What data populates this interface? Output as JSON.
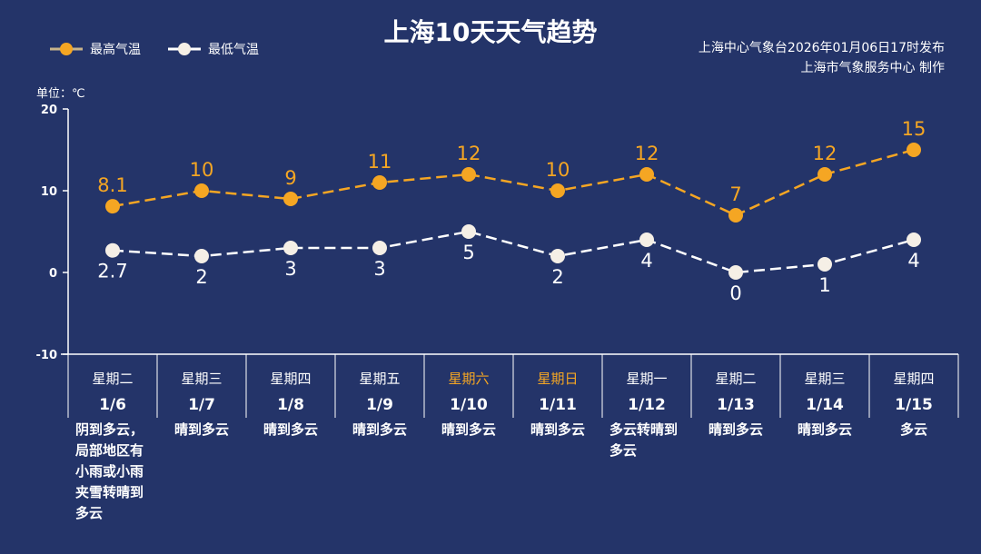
{
  "header": {
    "title": "上海10天天气趋势",
    "publisher": "上海中心气象台2026年01月06日17时发布",
    "maker": "上海市气象服务中心 制作"
  },
  "colors": {
    "background": "#243469",
    "high": "#f5a623",
    "low": "#ffffff",
    "weekend": "#f5a623"
  },
  "chart_data": {
    "type": "line",
    "title": "上海10天天气趋势",
    "unit_label": "单位：℃",
    "ylim": [
      -10,
      20
    ],
    "yticks": [
      20,
      10,
      0,
      -10
    ],
    "categories": [
      "1/6",
      "1/7",
      "1/8",
      "1/9",
      "1/10",
      "1/11",
      "1/12",
      "1/13",
      "1/14",
      "1/15"
    ],
    "weekdays": [
      "星期二",
      "星期三",
      "星期四",
      "星期五",
      "星期六",
      "星期日",
      "星期一",
      "星期二",
      "星期三",
      "星期四"
    ],
    "weekend": [
      false,
      false,
      false,
      false,
      true,
      true,
      false,
      false,
      false,
      false
    ],
    "weather": [
      "阴到多云，局部地区有小雨或小雨夹雪转晴到多云",
      "晴到多云",
      "晴到多云",
      "晴到多云",
      "晴到多云",
      "晴到多云",
      "多云转晴到多云",
      "晴到多云",
      "晴到多云",
      "多云"
    ],
    "series": [
      {
        "name": "最高气温",
        "values": [
          8.1,
          10,
          9,
          11,
          12,
          10,
          12,
          7,
          12,
          15
        ],
        "labels": [
          "8.1",
          "10",
          "9",
          "11",
          "12",
          "10",
          "12",
          "7",
          "12",
          "15"
        ]
      },
      {
        "name": "最低气温",
        "values": [
          2.7,
          2,
          3,
          3,
          5,
          2,
          4,
          0,
          1,
          4
        ],
        "labels": [
          "2.7",
          "2",
          "3",
          "3",
          "5",
          "2",
          "4",
          "0",
          "1",
          "4"
        ]
      }
    ],
    "legend": "top-left"
  }
}
